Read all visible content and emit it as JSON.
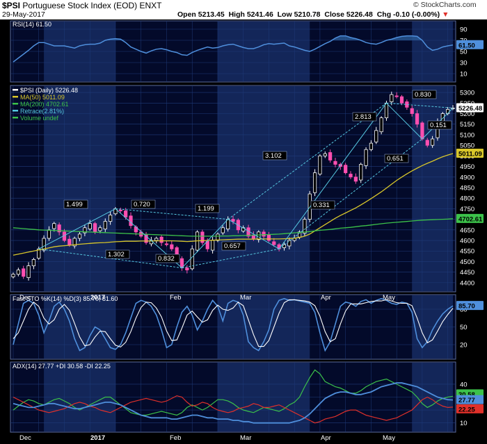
{
  "header": {
    "symbol": "$PSI",
    "name": "Portuguese Stock Index (EOD)",
    "exchange": "ENXT",
    "date": "29-May-2017",
    "open_label": "Open",
    "open": "5213.45",
    "high_label": "High",
    "high": "5241.46",
    "low_label": "Low",
    "low": "5210.78",
    "close_label": "Close",
    "close": "5226.48",
    "chg_label": "Chg",
    "chg": "-0.10 (-0.00%)",
    "chg_arrow": "▼",
    "credit": "© StockCharts.com"
  },
  "colors": {
    "background": "#000000",
    "panel_bg": "#030a2a",
    "shade": "#132659",
    "grid": "#1f3b7a",
    "rsi": "#4f8fdc",
    "candle_up": "#ffffff",
    "candle_down": "#ff4fb0",
    "ma50": "#d9c72a",
    "ma200": "#3cc24a",
    "retrace": "#56c8e0",
    "sto_k": "#4f8fdc",
    "sto_d": "#ffffff",
    "adx": "#4f8fdc",
    "plus_di": "#3cc24a",
    "minus_di": "#e0302a"
  },
  "chart_data": [
    {
      "type": "line",
      "title": "RSI(14) 61.50",
      "ylim": [
        0,
        100
      ],
      "y_ticks": [
        "90",
        "70",
        "50",
        "30",
        "10"
      ],
      "last_value_tag": "61.50",
      "series": [
        {
          "name": "RSI(14)",
          "values": [
            31,
            38,
            45,
            52,
            60,
            66,
            66,
            63,
            60,
            60,
            60,
            58,
            56,
            60,
            62,
            63,
            63,
            65,
            70,
            72,
            73,
            72,
            66,
            58,
            54,
            50,
            47,
            51,
            54,
            55,
            53,
            50,
            48,
            44,
            43,
            48,
            52,
            55,
            58,
            56,
            57,
            60,
            62,
            63,
            60,
            57,
            55,
            55,
            58,
            62,
            64,
            63,
            64,
            65,
            60,
            58,
            55,
            52,
            50,
            54,
            59,
            64,
            68,
            74,
            78,
            78,
            75,
            73,
            70,
            66,
            64,
            63,
            66,
            70,
            72,
            75,
            77,
            78,
            78,
            77,
            70,
            58,
            52,
            54,
            58,
            60,
            61.5
          ]
        }
      ]
    },
    {
      "type": "line",
      "title": "$PSI (Daily) 5226.48",
      "ylim": [
        4370,
        5320
      ],
      "y_ticks": [
        "5300",
        "5250",
        "5200",
        "5150",
        "5100",
        "5050",
        "5000",
        "4950",
        "4900",
        "4850",
        "4800",
        "4750",
        "4700",
        "4650",
        "4600",
        "4550",
        "4500",
        "4450",
        "4400"
      ],
      "x_ticks": [
        "Dec",
        "2017",
        "Feb",
        "Mar",
        "Apr",
        "May"
      ],
      "legend": [
        {
          "label": "$PSI (Daily) 5226.48"
        },
        {
          "label": "MA(50) 5011.09"
        },
        {
          "label": "MA(200) 4702.61"
        },
        {
          "label": "Retrace(2.81%)"
        },
        {
          "label": "Volume undef"
        }
      ],
      "value_tags": {
        "close": "5226.48",
        "ma50": "5011.09",
        "ma200": "4702.61"
      },
      "retrace_labels": [
        "1.499",
        "0.720",
        "1.302",
        "0.832",
        "1.199",
        "0.657",
        "3.102",
        "0.331",
        "2.813",
        "0.651",
        "0.830",
        "0.151"
      ],
      "series": [
        {
          "name": "$PSI (Daily)",
          "values": [
            4440,
            4460,
            4430,
            4480,
            4510,
            4560,
            4610,
            4650,
            4680,
            4640,
            4600,
            4580,
            4610,
            4630,
            4660,
            4680,
            4640,
            4660,
            4690,
            4720,
            4750,
            4740,
            4710,
            4670,
            4640,
            4620,
            4590,
            4600,
            4610,
            4590,
            4580,
            4560,
            4520,
            4470,
            4460,
            4560,
            4640,
            4590,
            4560,
            4600,
            4630,
            4660,
            4700,
            4690,
            4650,
            4660,
            4620,
            4610,
            4640,
            4620,
            4600,
            4580,
            4560,
            4580,
            4600,
            4610,
            4640,
            4700,
            4820,
            4920,
            5000,
            5010,
            4980,
            4960,
            4950,
            4920,
            4900,
            4880,
            4960,
            5030,
            5060,
            5120,
            5180,
            5250,
            5290,
            5280,
            5250,
            5230,
            5200,
            5150,
            5080,
            5050,
            5080,
            5160,
            5200,
            5220,
            5226.48
          ]
        },
        {
          "name": "MA(50)",
          "values": [
            4530,
            4535,
            4540,
            4545,
            4550,
            4555,
            4560,
            4565,
            4570,
            4573,
            4575,
            4577,
            4580,
            4582,
            4584,
            4586,
            4588,
            4589,
            4590,
            4592,
            4594,
            4595,
            4596,
            4596,
            4596,
            4597,
            4597,
            4597,
            4598,
            4598,
            4598,
            4598,
            4597,
            4596,
            4595,
            4596,
            4598,
            4599,
            4600,
            4601,
            4602,
            4603,
            4604,
            4605,
            4606,
            4606,
            4606,
            4606,
            4607,
            4607,
            4607,
            4607,
            4607,
            4608,
            4609,
            4611,
            4614,
            4620,
            4630,
            4645,
            4660,
            4675,
            4690,
            4705,
            4718,
            4730,
            4742,
            4754,
            4768,
            4783,
            4798,
            4814,
            4830,
            4848,
            4866,
            4884,
            4900,
            4915,
            4929,
            4942,
            4954,
            4965,
            4975,
            4986,
            4996,
            5004,
            5011.09
          ]
        },
        {
          "name": "MA(200)",
          "values": [
            4660,
            4658,
            4656,
            4654,
            4652,
            4650,
            4649,
            4648,
            4647,
            4646,
            4645,
            4644,
            4643,
            4642,
            4641,
            4640,
            4639,
            4638,
            4637,
            4636,
            4635,
            4634,
            4633,
            4632,
            4631,
            4630,
            4629,
            4628,
            4627,
            4626,
            4625,
            4624,
            4623,
            4622,
            4621,
            4620,
            4620,
            4620,
            4620,
            4620,
            4620,
            4621,
            4621,
            4622,
            4622,
            4623,
            4624,
            4625,
            4626,
            4627,
            4628,
            4629,
            4630,
            4632,
            4634,
            4636,
            4638,
            4640,
            4642,
            4645,
            4648,
            4650,
            4652,
            4655,
            4658,
            4660,
            4662,
            4665,
            4668,
            4670,
            4673,
            4676,
            4679,
            4682,
            4684,
            4686,
            4688,
            4690,
            4692,
            4694,
            4696,
            4697,
            4698,
            4699,
            4700,
            4701,
            4702.61
          ]
        }
      ]
    },
    {
      "type": "line",
      "title": "Fast STO %K(14) %D(3) 85.70, 81.60",
      "ylim": [
        0,
        100
      ],
      "y_ticks": [
        "80",
        "50",
        "20"
      ],
      "last_value_tag": "85.70",
      "series": [
        {
          "name": "%K(14)",
          "values": [
            20,
            55,
            90,
            95,
            90,
            70,
            40,
            60,
            85,
            92,
            80,
            60,
            30,
            10,
            15,
            35,
            50,
            45,
            30,
            15,
            12,
            20,
            40,
            65,
            90,
            95,
            92,
            85,
            70,
            45,
            15,
            20,
            50,
            75,
            85,
            70,
            45,
            60,
            80,
            95,
            85,
            60,
            90,
            95,
            92,
            70,
            25,
            15,
            10,
            25,
            45,
            80,
            95,
            98,
            95,
            96,
            94,
            92,
            90,
            75,
            40,
            10,
            25,
            55,
            85,
            92,
            90,
            85,
            93,
            96,
            90,
            95,
            98,
            95,
            90,
            88,
            92,
            90,
            75,
            30,
            15,
            25,
            45,
            60,
            72,
            80,
            85.7
          ]
        },
        {
          "name": "%D(3)",
          "values": [
            30,
            40,
            60,
            80,
            92,
            85,
            65,
            55,
            62,
            80,
            88,
            78,
            56,
            33,
            18,
            20,
            33,
            43,
            42,
            30,
            19,
            16,
            24,
            42,
            65,
            83,
            92,
            91,
            82,
            67,
            43,
            27,
            28,
            48,
            70,
            77,
            67,
            58,
            62,
            78,
            87,
            80,
            78,
            82,
            92,
            86,
            62,
            37,
            17,
            17,
            27,
            50,
            73,
            91,
            96,
            96,
            95,
            94,
            92,
            86,
            68,
            42,
            25,
            30,
            55,
            77,
            89,
            89,
            89,
            91,
            93,
            94,
            94,
            96,
            94,
            91,
            90,
            90,
            86,
            65,
            40,
            23,
            28,
            43,
            59,
            71,
            81.6
          ]
        }
      ]
    },
    {
      "type": "line",
      "title": "ADX(14) 27.77 +DI 30.58 -DI 22.25",
      "ylim": [
        5,
        55
      ],
      "y_ticks": [
        "40",
        "30",
        "20",
        "10"
      ],
      "value_tags": [
        "30.58",
        "27.77",
        "22.25"
      ],
      "series": [
        {
          "name": "ADX(14)",
          "values": [
            25,
            24,
            23,
            22,
            22,
            23,
            24,
            25,
            25,
            24,
            23,
            22,
            21,
            21,
            22,
            23,
            24,
            25,
            26,
            26,
            25,
            24,
            22,
            20,
            18,
            16,
            15,
            14,
            14,
            14,
            14,
            13,
            13,
            14,
            15,
            16,
            16,
            15,
            14,
            14,
            13,
            13,
            13,
            12,
            12,
            11,
            11,
            10,
            10,
            10,
            10,
            10,
            10,
            10,
            10,
            11,
            12,
            14,
            17,
            21,
            25,
            29,
            31,
            33,
            34,
            34,
            33,
            32,
            32,
            33,
            34,
            36,
            38,
            39,
            40,
            41,
            41,
            40,
            39,
            38,
            36,
            34,
            32,
            30,
            29,
            28,
            27.77
          ]
        },
        {
          "name": "+DI",
          "values": [
            20,
            23,
            26,
            28,
            27,
            25,
            24,
            26,
            28,
            29,
            27,
            25,
            22,
            20,
            22,
            24,
            26,
            28,
            30,
            30,
            27,
            24,
            21,
            18,
            17,
            16,
            16,
            17,
            18,
            19,
            18,
            17,
            16,
            18,
            22,
            24,
            22,
            20,
            22,
            25,
            28,
            28,
            27,
            25,
            22,
            20,
            19,
            18,
            20,
            22,
            21,
            20,
            19,
            21,
            24,
            26,
            30,
            38,
            45,
            51,
            48,
            42,
            40,
            38,
            37,
            35,
            33,
            33,
            35,
            38,
            40,
            42,
            43,
            44,
            42,
            40,
            38,
            36,
            34,
            30,
            25,
            22,
            24,
            27,
            29,
            30,
            30.58
          ]
        },
        {
          "name": "-DI",
          "values": [
            30,
            28,
            26,
            24,
            22,
            20,
            19,
            18,
            19,
            20,
            21,
            23,
            25,
            26,
            25,
            23,
            22,
            20,
            19,
            18,
            20,
            22,
            24,
            26,
            27,
            28,
            29,
            28,
            27,
            26,
            27,
            29,
            31,
            30,
            26,
            23,
            24,
            26,
            25,
            22,
            20,
            19,
            18,
            19,
            21,
            22,
            23,
            25,
            24,
            22,
            22,
            23,
            24,
            22,
            20,
            18,
            16,
            14,
            12,
            10,
            11,
            13,
            14,
            15,
            17,
            19,
            20,
            20,
            18,
            16,
            15,
            14,
            13,
            12,
            13,
            14,
            16,
            18,
            20,
            24,
            28,
            30,
            28,
            25,
            23,
            22,
            22.25
          ]
        }
      ]
    }
  ]
}
